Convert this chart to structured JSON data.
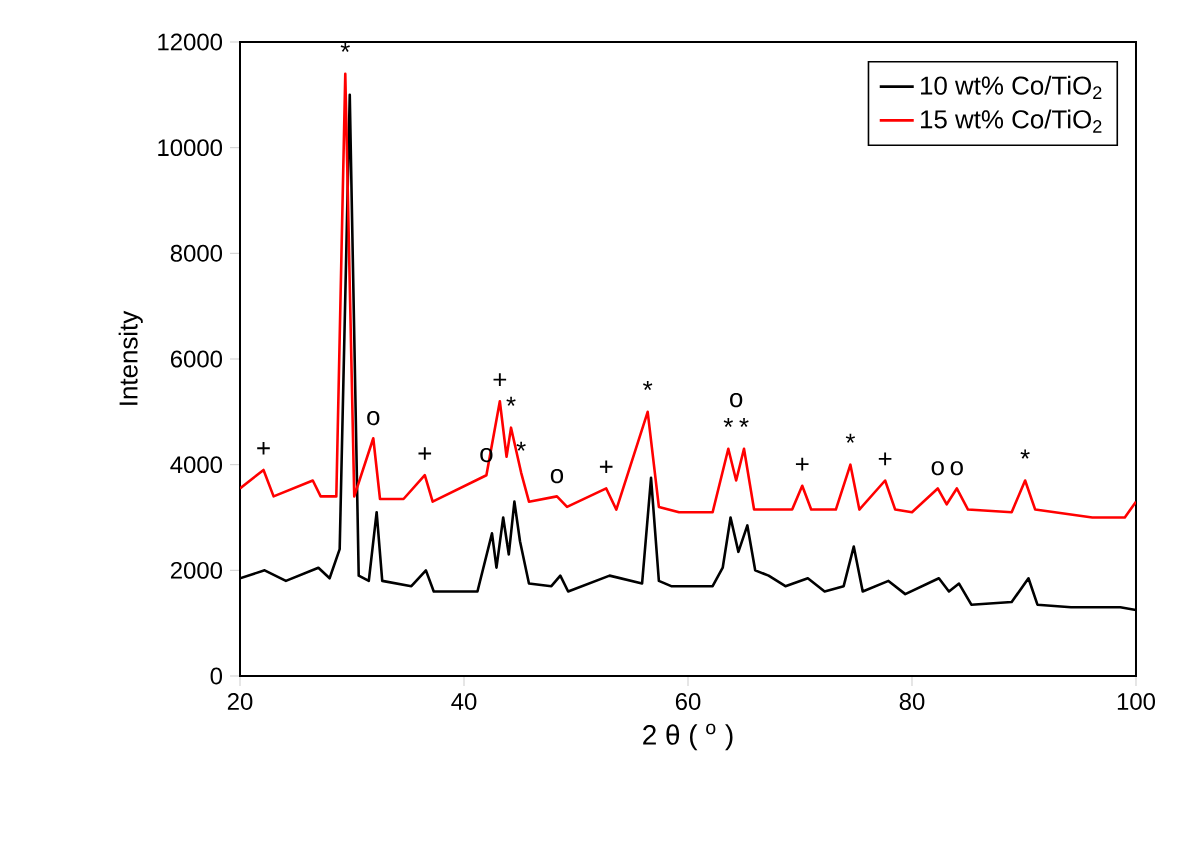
{
  "chart_data": {
    "type": "line",
    "xlabel": "2 θ ( $^{o}$ )",
    "ylabel": "Intensity",
    "xlim": [
      20,
      100
    ],
    "ylim": [
      0,
      12000
    ],
    "xticks": [
      20,
      40,
      60,
      80,
      100
    ],
    "yticks": [
      0,
      2000,
      4000,
      6000,
      8000,
      10000,
      12000
    ],
    "legend": "top right",
    "series": [
      {
        "name": "10 wt% Co/TiO$_{2}$",
        "color": "#000000",
        "x": [
          20,
          22.2,
          24.1,
          27.0,
          28.0,
          28.9,
          29.8,
          30.6,
          31.5,
          32.2,
          32.7,
          35.3,
          36.6,
          37.3,
          41.2,
          42.5,
          42.9,
          43.5,
          44.0,
          44.5,
          45.0,
          45.8,
          47.8,
          48.6,
          49.3,
          53.0,
          55.9,
          56.7,
          57.4,
          58.5,
          62.2,
          63.1,
          63.8,
          64.5,
          65.3,
          66.0,
          67.2,
          68.7,
          70.7,
          72.2,
          73.9,
          74.8,
          75.6,
          77.9,
          79.4,
          82.4,
          83.3,
          84.2,
          85.3,
          88.9,
          90.4,
          91.2,
          94.2,
          98.6,
          100
        ],
        "values": [
          1850,
          2000,
          1800,
          2050,
          1850,
          2400,
          11000,
          1900,
          1800,
          3100,
          1800,
          1700,
          2000,
          1600,
          1600,
          2700,
          2050,
          3000,
          2300,
          3300,
          2550,
          1750,
          1700,
          1900,
          1600,
          1900,
          1750,
          3750,
          1800,
          1700,
          1700,
          2050,
          3000,
          2350,
          2850,
          2000,
          1900,
          1700,
          1850,
          1600,
          1700,
          2450,
          1600,
          1800,
          1550,
          1850,
          1600,
          1750,
          1350,
          1400,
          1850,
          1350,
          1300,
          1300,
          1250
        ]
      },
      {
        "name": "15 wt% Co/TiO$_{2}$",
        "color": "#ff0000",
        "x": [
          20,
          22.1,
          23.0,
          26.5,
          27.2,
          28.6,
          29.4,
          30.2,
          31.9,
          32.5,
          34.6,
          36.5,
          37.2,
          42.0,
          43.2,
          43.8,
          44.2,
          45.1,
          45.8,
          48.3,
          49.2,
          52.7,
          53.6,
          56.4,
          57.4,
          59.2,
          62.2,
          63.6,
          64.3,
          65.0,
          65.9,
          69.3,
          70.2,
          71.0,
          73.2,
          74.5,
          75.3,
          77.6,
          78.5,
          80.0,
          82.3,
          83.1,
          84.0,
          85.0,
          88.9,
          90.1,
          91.0,
          96.1,
          99.0,
          100
        ],
        "values": [
          3550,
          3900,
          3400,
          3700,
          3400,
          3400,
          11400,
          3400,
          4500,
          3350,
          3350,
          3800,
          3300,
          3800,
          5200,
          4150,
          4700,
          3850,
          3300,
          3400,
          3200,
          3550,
          3150,
          5000,
          3200,
          3100,
          3100,
          4300,
          3700,
          4300,
          3150,
          3150,
          3600,
          3150,
          3150,
          4000,
          3150,
          3700,
          3150,
          3100,
          3550,
          3250,
          3550,
          3150,
          3100,
          3700,
          3150,
          3000,
          3000,
          3300
        ]
      }
    ],
    "annotations": [
      {
        "text": "+",
        "x": 22.1,
        "y": 3900
      },
      {
        "text": "*",
        "x": 29.4,
        "y": 11400
      },
      {
        "text": "o",
        "x": 31.9,
        "y": 4500
      },
      {
        "text": "+",
        "x": 36.5,
        "y": 3800
      },
      {
        "text": "o",
        "x": 42.0,
        "y": 3800
      },
      {
        "text": "+",
        "x": 43.2,
        "y": 5200
      },
      {
        "text": "*",
        "x": 44.2,
        "y": 4700
      },
      {
        "text": "*",
        "x": 45.1,
        "y": 3850
      },
      {
        "text": "o",
        "x": 48.3,
        "y": 3400
      },
      {
        "text": "+",
        "x": 52.7,
        "y": 3550
      },
      {
        "text": "*",
        "x": 56.4,
        "y": 5000
      },
      {
        "text": "*",
        "x": 63.6,
        "y": 4300
      },
      {
        "text": "*",
        "x": 65.0,
        "y": 4300
      },
      {
        "text": "o",
        "x": 64.3,
        "y": 3700
      },
      {
        "text": "+",
        "x": 70.2,
        "y": 3600
      },
      {
        "text": "*",
        "x": 74.5,
        "y": 4000
      },
      {
        "text": "+",
        "x": 77.6,
        "y": 3700
      },
      {
        "text": "o",
        "x": 82.3,
        "y": 3550
      },
      {
        "text": "o",
        "x": 84.0,
        "y": 3550
      },
      {
        "text": "*",
        "x": 90.1,
        "y": 3700
      }
    ]
  }
}
